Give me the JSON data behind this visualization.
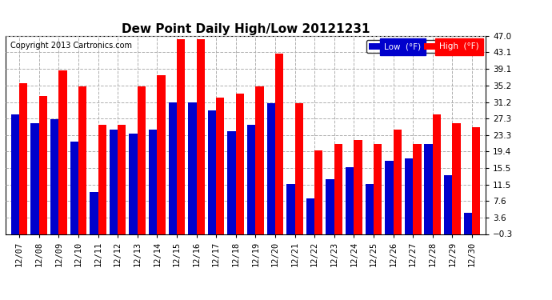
{
  "title": "Dew Point Daily High/Low 20121231",
  "copyright": "Copyright 2013 Cartronics.com",
  "dates": [
    "12/07",
    "12/08",
    "12/09",
    "12/10",
    "12/11",
    "12/12",
    "12/13",
    "12/14",
    "12/15",
    "12/16",
    "12/17",
    "12/18",
    "12/19",
    "12/20",
    "12/21",
    "12/22",
    "12/23",
    "12/24",
    "12/25",
    "12/26",
    "12/27",
    "12/28",
    "12/29",
    "12/30"
  ],
  "high": [
    36.0,
    33.0,
    39.1,
    35.2,
    26.0,
    26.0,
    35.2,
    38.0,
    46.5,
    46.5,
    32.5,
    33.5,
    35.2,
    43.1,
    31.2,
    20.0,
    21.5,
    22.5,
    21.5,
    25.0,
    21.5,
    28.5,
    26.5,
    25.5
  ],
  "low": [
    28.5,
    26.5,
    27.5,
    22.0,
    10.0,
    25.0,
    24.0,
    25.0,
    31.5,
    31.5,
    29.5,
    24.5,
    26.0,
    31.2,
    12.0,
    8.5,
    13.0,
    16.0,
    12.0,
    17.5,
    18.0,
    21.5,
    14.0,
    5.0
  ],
  "ylim": [
    -0.3,
    47.0
  ],
  "yticks": [
    -0.3,
    3.6,
    7.6,
    11.5,
    15.5,
    19.4,
    23.3,
    27.3,
    31.2,
    35.2,
    39.1,
    43.1,
    47.0
  ],
  "high_color": "#ff0000",
  "low_color": "#0000cc",
  "bg_color": "#ffffff",
  "grid_color": "#b0b0b0",
  "bar_width": 0.42,
  "legend_high_label": "High  (°F)",
  "legend_low_label": "Low  (°F)"
}
